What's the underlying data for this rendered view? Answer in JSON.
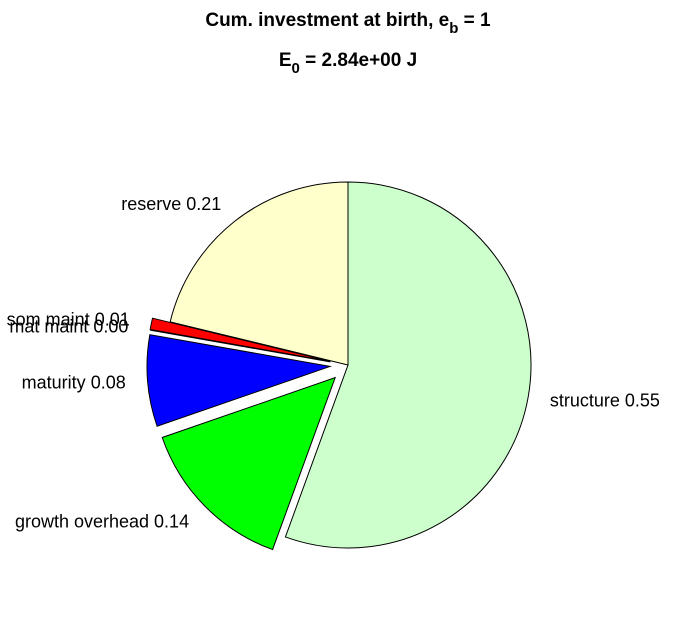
{
  "chart_data": {
    "type": "pie",
    "title": [
      "Cum. investment at birth, e",
      "b",
      " = 1"
    ],
    "subtitle": [
      "E",
      "0",
      " = 2.84e+00 J"
    ],
    "categories": [
      "structure",
      "growth overhead",
      "maturity",
      "mat maint",
      "som maint",
      "reserve"
    ],
    "values": [
      0.55,
      0.14,
      0.08,
      0.0,
      0.01,
      0.21
    ],
    "value_labels": [
      "0.55",
      "0.14",
      "0.08",
      "0.00",
      "0.01",
      "0.21"
    ],
    "colors": [
      "#ccffcc",
      "#00ff00",
      "#0000ff",
      "#000000",
      "#ff0000",
      "#ffffcc"
    ],
    "explode": [
      false,
      true,
      true,
      true,
      true,
      false
    ]
  }
}
